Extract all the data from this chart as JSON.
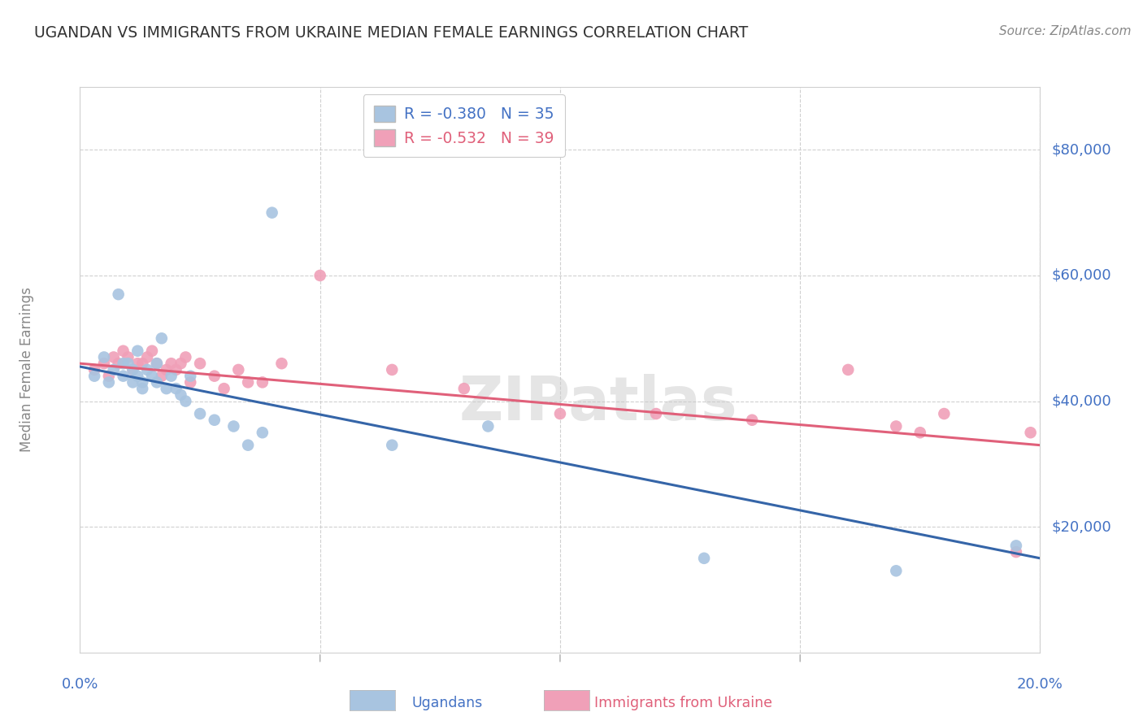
{
  "title": "UGANDAN VS IMMIGRANTS FROM UKRAINE MEDIAN FEMALE EARNINGS CORRELATION CHART",
  "source": "Source: ZipAtlas.com",
  "ylabel": "Median Female Earnings",
  "xmin": 0.0,
  "xmax": 0.2,
  "ymin": 0,
  "ymax": 90000,
  "blue_R": -0.38,
  "blue_N": 35,
  "pink_R": -0.532,
  "pink_N": 39,
  "blue_color": "#a8c4e0",
  "pink_color": "#f0a0b8",
  "blue_line_color": "#3565a8",
  "pink_line_color": "#e0607a",
  "legend_blue_text": "R = -0.380   N = 35",
  "legend_pink_text": "R = -0.532   N = 39",
  "legend_label_blue": "Ugandans",
  "legend_label_pink": "Immigrants from Ukraine",
  "watermark": "ZIPatlas",
  "background_color": "#ffffff",
  "grid_color": "#d0d0d0",
  "title_color": "#333333",
  "source_color": "#888888",
  "axis_label_color": "#4472c4",
  "ylabel_color": "#888888",
  "blue_x": [
    0.003,
    0.005,
    0.006,
    0.007,
    0.008,
    0.009,
    0.009,
    0.01,
    0.011,
    0.011,
    0.012,
    0.012,
    0.013,
    0.013,
    0.014,
    0.015,
    0.016,
    0.016,
    0.017,
    0.018,
    0.019,
    0.02,
    0.021,
    0.022,
    0.023,
    0.025,
    0.028,
    0.032,
    0.035,
    0.038,
    0.065,
    0.085,
    0.13,
    0.17,
    0.195
  ],
  "blue_y": [
    44000,
    47000,
    43000,
    45000,
    57000,
    44000,
    46000,
    46000,
    43000,
    45000,
    44000,
    48000,
    43000,
    42000,
    45000,
    44000,
    46000,
    43000,
    50000,
    42000,
    44000,
    42000,
    41000,
    40000,
    44000,
    38000,
    37000,
    36000,
    33000,
    35000,
    33000,
    36000,
    15000,
    13000,
    17000
  ],
  "blue_outlier_x": [
    0.04
  ],
  "blue_outlier_y": [
    70000
  ],
  "pink_x": [
    0.003,
    0.005,
    0.006,
    0.007,
    0.008,
    0.009,
    0.01,
    0.011,
    0.012,
    0.013,
    0.014,
    0.015,
    0.016,
    0.017,
    0.018,
    0.019,
    0.02,
    0.021,
    0.022,
    0.023,
    0.025,
    0.028,
    0.03,
    0.033,
    0.035,
    0.038,
    0.042,
    0.05,
    0.065,
    0.08,
    0.1,
    0.12,
    0.14,
    0.16,
    0.17,
    0.175,
    0.18,
    0.195,
    0.198
  ],
  "pink_y": [
    45000,
    46000,
    44000,
    47000,
    46000,
    48000,
    47000,
    45000,
    46000,
    46000,
    47000,
    48000,
    46000,
    44000,
    45000,
    46000,
    45000,
    46000,
    47000,
    43000,
    46000,
    44000,
    42000,
    45000,
    43000,
    43000,
    46000,
    60000,
    45000,
    42000,
    38000,
    38000,
    37000,
    45000,
    36000,
    35000,
    38000,
    16000,
    35000
  ]
}
